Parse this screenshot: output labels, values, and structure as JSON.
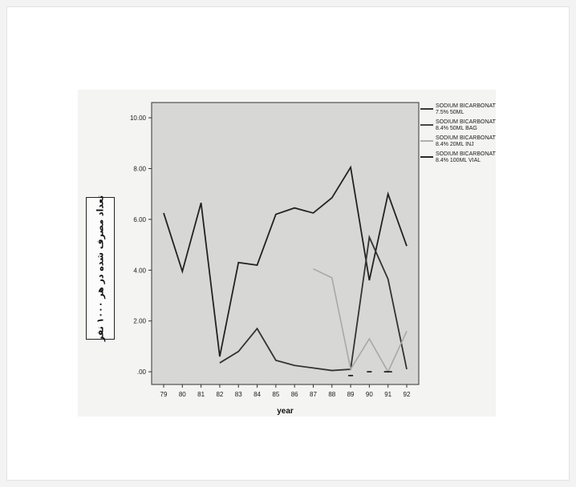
{
  "chart_data": {
    "type": "line",
    "title": "",
    "xlabel": "year",
    "ylabel": "تعداد مصرف شده در هر ۱۰۰۰ نفر",
    "x": [
      "79",
      "80",
      "81",
      "82",
      "83",
      "84",
      "85",
      "86",
      "87",
      "88",
      "89",
      "90",
      "91",
      "92"
    ],
    "ylim": [
      -0.5,
      10.6
    ],
    "yticks": [
      ".00",
      "2.00",
      "4.00",
      "6.00",
      "8.00",
      "10.00"
    ],
    "ytick_values": [
      0,
      2,
      4,
      6,
      8,
      10
    ],
    "grid": false,
    "legend_position": "right",
    "series": [
      {
        "name": "SODIUM BICARBONATE 7.5% 50ML",
        "color": "#222222",
        "values": [
          6.25,
          3.95,
          6.65,
          0.6,
          4.3,
          4.2,
          6.2,
          6.45,
          6.25,
          6.85,
          8.05,
          3.6,
          7.0,
          4.95
        ]
      },
      {
        "name": "SODIUM BICARBONATE 8.4% 50ML BAG",
        "color": "#333333",
        "values": [
          null,
          null,
          null,
          0.35,
          0.8,
          1.7,
          0.45,
          0.25,
          0.15,
          0.05,
          0.1,
          5.3,
          3.65,
          0.1
        ]
      },
      {
        "name": "SODIUM BICARBONATE 8.4% 20ML INJ",
        "color": "#a8a8a8",
        "values": [
          null,
          null,
          null,
          null,
          null,
          null,
          null,
          null,
          4.05,
          3.7,
          0.1,
          1.3,
          0.0,
          1.6
        ]
      },
      {
        "name": "SODIUM BICARBONATE 8.4% 100ML VIAL",
        "color": "#111111",
        "values": [
          null,
          null,
          null,
          null,
          null,
          null,
          null,
          null,
          null,
          null,
          -0.15,
          0.0,
          0.0,
          null
        ]
      }
    ]
  }
}
